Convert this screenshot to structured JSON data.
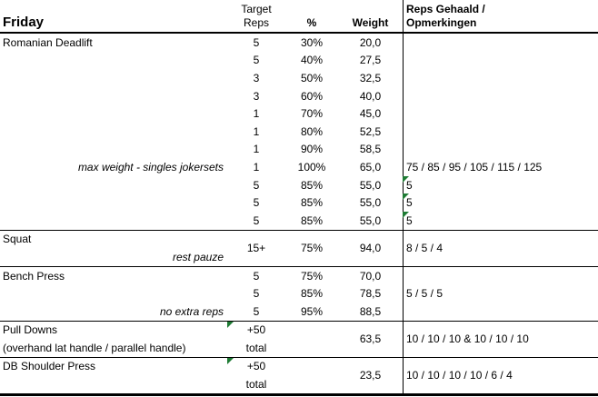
{
  "header": {
    "title": "Friday",
    "target_line1": "Target",
    "target_line2": "Reps",
    "pct": "%",
    "weight": "Weight",
    "notes_line1": "Reps Gehaald /",
    "notes_line2": "Opmerkingen"
  },
  "colors": {
    "background": "#ffffff",
    "text": "#000000",
    "border": "#000000",
    "flag_green": "#1e7b34"
  },
  "sections": {
    "romanian_deadlift": {
      "name": "Romanian Deadlift",
      "rows": [
        {
          "reps": "5",
          "pct": "30%",
          "weight": "20,0"
        },
        {
          "reps": "5",
          "pct": "40%",
          "weight": "27,5"
        },
        {
          "reps": "3",
          "pct": "50%",
          "weight": "32,5"
        },
        {
          "reps": "3",
          "pct": "60%",
          "weight": "40,0"
        },
        {
          "reps": "1",
          "pct": "70%",
          "weight": "45,0"
        },
        {
          "reps": "1",
          "pct": "80%",
          "weight": "52,5"
        },
        {
          "reps": "1",
          "pct": "90%",
          "weight": "58,5"
        },
        {
          "note": "max weight - singles jokersets",
          "reps": "1",
          "pct": "100%",
          "weight": "65,0",
          "result": "75 / 85 / 95 / 105 / 115 / 125"
        },
        {
          "reps": "5",
          "pct": "85%",
          "weight": "55,0",
          "result": "5",
          "flagged": true
        },
        {
          "reps": "5",
          "pct": "85%",
          "weight": "55,0",
          "result": "5",
          "flagged": true
        },
        {
          "reps": "5",
          "pct": "85%",
          "weight": "55,0",
          "result": "5",
          "flagged": true
        }
      ]
    },
    "squat": {
      "name": "Squat",
      "note": "rest pauze",
      "reps": "15+",
      "pct": "75%",
      "weight": "94,0",
      "result": "8 / 5 / 4"
    },
    "bench_press": {
      "name": "Bench Press",
      "note": "no extra reps",
      "result": "5 / 5 / 5",
      "rows": [
        {
          "reps": "5",
          "pct": "75%",
          "weight": "70,0"
        },
        {
          "reps": "5",
          "pct": "85%",
          "weight": "78,5"
        },
        {
          "reps": "5",
          "pct": "95%",
          "weight": "88,5"
        }
      ]
    },
    "pull_downs": {
      "name": "Pull Downs",
      "name_line2": "(overhand lat handle / parallel handle)",
      "reps": "+50",
      "reps_line2": "total",
      "weight": "63,5",
      "result": "10 / 10 / 10 & 10 / 10 / 10",
      "flagged": true
    },
    "db_shoulder_press": {
      "name": "DB Shoulder Press",
      "reps": "+50",
      "reps_line2": "total",
      "weight": "23,5",
      "result": "10 / 10 / 10 / 10 / 6 / 4",
      "flagged": true
    }
  }
}
